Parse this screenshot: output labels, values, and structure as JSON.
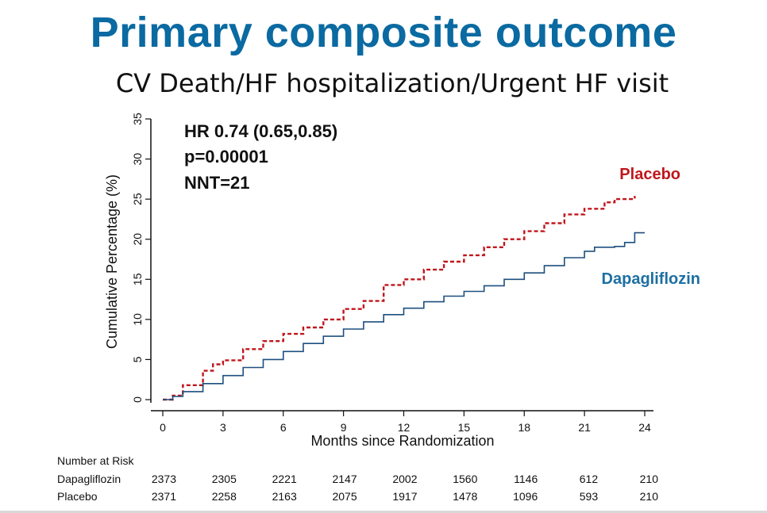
{
  "slide": {
    "title": "Primary composite outcome",
    "subtitle": "CV Death/HF hospitalization/Urgent HF visit"
  },
  "chart_data": {
    "type": "line",
    "xlabel": "Months since Randomization",
    "ylabel": "Cumulative Percentage (%)",
    "xlim": [
      0,
      24
    ],
    "ylim": [
      0,
      35
    ],
    "xticks": [
      0,
      3,
      6,
      9,
      12,
      15,
      18,
      21,
      24
    ],
    "yticks": [
      0,
      5,
      10,
      15,
      20,
      25,
      30,
      35
    ],
    "grid": false,
    "annotations": [
      "HR 0.74 (0.65,0.85)",
      "p=0.00001",
      "NNT=21"
    ],
    "series": [
      {
        "name": "Placebo",
        "color": "#c0161c",
        "style": "dashed",
        "x": [
          0,
          0.5,
          1,
          2,
          2.5,
          3,
          4,
          5,
          6,
          7,
          8,
          9,
          10,
          11,
          12,
          13,
          14,
          15,
          16,
          17,
          18,
          19,
          20,
          21,
          22,
          22.5,
          23.5
        ],
        "y": [
          0,
          0.5,
          1.8,
          3.6,
          4.4,
          4.9,
          6.3,
          7.3,
          8.2,
          9.0,
          10.0,
          11.3,
          12.3,
          14.3,
          15.0,
          16.2,
          17.2,
          18.0,
          19.0,
          20.0,
          21.0,
          22.0,
          23.1,
          23.8,
          24.6,
          25.0,
          25.4
        ]
      },
      {
        "name": "Dapagliflozin",
        "color": "#1d4f7e",
        "style": "solid",
        "x": [
          0,
          0.5,
          1,
          2,
          3,
          4,
          5,
          6,
          7,
          8,
          9,
          10,
          11,
          12,
          13,
          14,
          15,
          16,
          17,
          18,
          19,
          20,
          21,
          21.5,
          22.5,
          23,
          23.5,
          24
        ],
        "y": [
          0,
          0.4,
          1.0,
          2.0,
          3.0,
          4.0,
          5.0,
          6.0,
          7.0,
          7.9,
          8.8,
          9.7,
          10.6,
          11.4,
          12.2,
          12.9,
          13.5,
          14.2,
          15.0,
          15.8,
          16.7,
          17.7,
          18.5,
          19.0,
          19.1,
          19.6,
          20.8,
          20.8
        ]
      }
    ],
    "risk_table": {
      "title": "Number at Risk",
      "times": [
        0,
        3,
        6,
        9,
        12,
        15,
        18,
        21,
        24
      ],
      "rows": [
        {
          "name": "Dapagliflozin",
          "values": [
            2373,
            2305,
            2221,
            2147,
            2002,
            1560,
            1146,
            612,
            210
          ]
        },
        {
          "name": "Placebo",
          "values": [
            2371,
            2258,
            2163,
            2075,
            1917,
            1478,
            1096,
            593,
            210
          ]
        }
      ]
    }
  }
}
